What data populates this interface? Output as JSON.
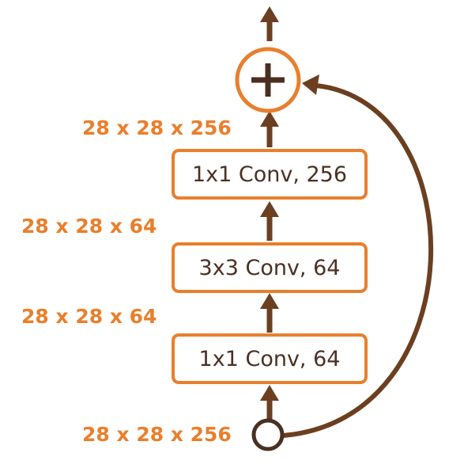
{
  "blocks": [
    {
      "label": "1x1 Conv, 256"
    },
    {
      "label": "3x3 Conv, 64"
    },
    {
      "label": "1x1 Conv, 64"
    }
  ],
  "dimensions": {
    "output": "28 x 28 x 256",
    "after_3x3": "28 x 28 x 64",
    "after_1x1_first": "28 x 28 x 64",
    "input": "28 x 28 x 256"
  },
  "add_symbol": "+",
  "colors": {
    "accent_orange": "#e97f2c",
    "arrow_brown": "#6b3f1f",
    "text_dark": "#4a3022"
  }
}
